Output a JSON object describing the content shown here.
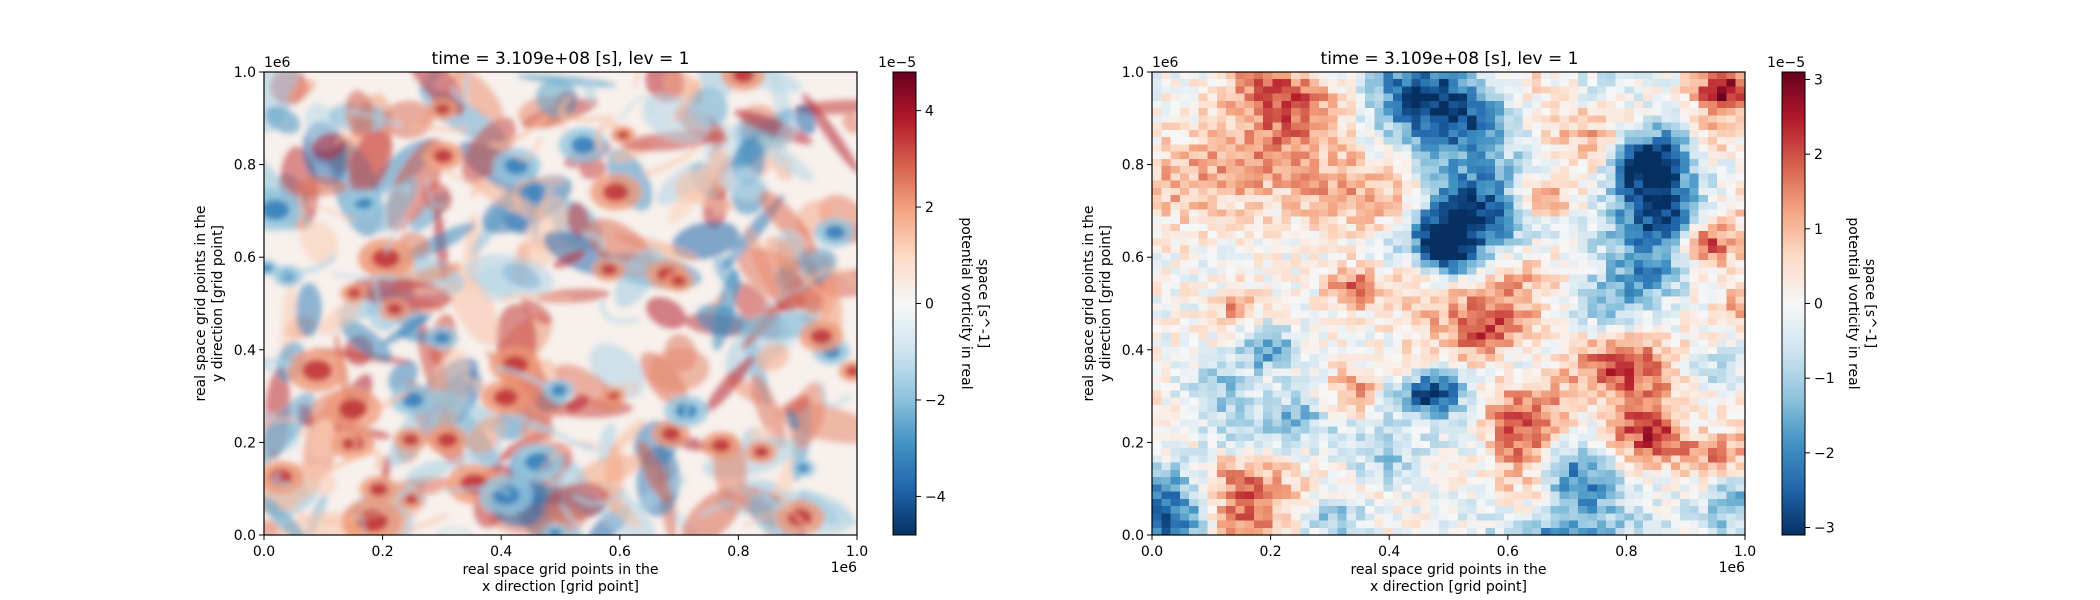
{
  "chart_data": [
    {
      "type": "heatmap",
      "title": "time = 3.109e+08 [s], lev = 1",
      "xlabel": [
        "real space grid points in the",
        "x direction [grid point]"
      ],
      "ylabel": [
        "real space grid points in the",
        "y direction [grid point]"
      ],
      "x_ticks": [
        "0.0",
        "0.2",
        "0.4",
        "0.6",
        "0.8",
        "1.0"
      ],
      "y_ticks": [
        "0.0",
        "0.2",
        "0.4",
        "0.6",
        "0.8",
        "1.0"
      ],
      "x_offset": "1e6",
      "y_offset": "1e6",
      "xlim": [
        0,
        1000000
      ],
      "ylim": [
        0,
        1000000
      ],
      "colorbar": {
        "label": [
          "potential vorticity in real",
          "space [s^-1]"
        ],
        "offset": "1e−5",
        "ticks": [
          "−4",
          "−2",
          "0",
          "2",
          "4"
        ],
        "tick_values": [
          -4,
          -2,
          0,
          2,
          4
        ],
        "range": [
          -4.8,
          4.8
        ],
        "cmap": "RdBu_r"
      },
      "grid_resolution": "fine",
      "grid": false
    },
    {
      "type": "heatmap",
      "title": "time = 3.109e+08 [s], lev = 1",
      "xlabel": [
        "real space grid points in the",
        "x direction [grid point]"
      ],
      "ylabel": [
        "real space grid points in the",
        "y direction [grid point]"
      ],
      "x_ticks": [
        "0.0",
        "0.2",
        "0.4",
        "0.6",
        "0.8",
        "1.0"
      ],
      "y_ticks": [
        "0.0",
        "0.2",
        "0.4",
        "0.6",
        "0.8",
        "1.0"
      ],
      "x_offset": "1e6",
      "y_offset": "1e6",
      "xlim": [
        0,
        1000000
      ],
      "ylim": [
        0,
        1000000
      ],
      "colorbar": {
        "label": [
          "potential vorticity in real",
          "space [s^-1]"
        ],
        "offset": "1e−5",
        "ticks": [
          "−3",
          "−2",
          "−1",
          "0",
          "1",
          "2",
          "3"
        ],
        "tick_values": [
          -3,
          -2,
          -1,
          0,
          1,
          2,
          3
        ],
        "range": [
          -3.1,
          3.1
        ],
        "cmap": "RdBu_r"
      },
      "grid_resolution": "coarse",
      "grid": false
    }
  ]
}
